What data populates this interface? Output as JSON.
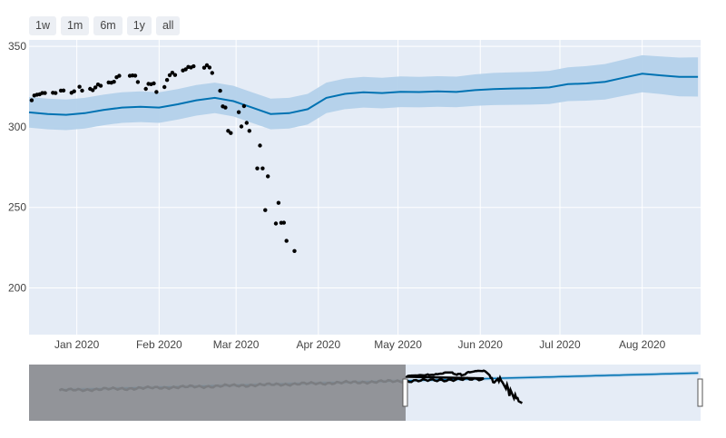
{
  "range_selector": {
    "buttons": [
      {
        "label": "1w"
      },
      {
        "label": "1m"
      },
      {
        "label": "6m"
      },
      {
        "label": "1y"
      },
      {
        "label": "all"
      }
    ]
  },
  "colors": {
    "plot_bg": "#e5ecf6",
    "forecast_line": "#0072b2",
    "forecast_band": "#b3d1ea",
    "actual_points": "#000000",
    "slider_mask": "#888b8f"
  },
  "chart_data": {
    "type": "scatter",
    "title": "",
    "xlabel": "",
    "ylabel": "",
    "x_range": [
      "2019-12-14",
      "2020-08-23"
    ],
    "ylim": [
      171,
      354
    ],
    "grid": true,
    "x_tick_labels": [
      {
        "date": "2020-01-01",
        "label": "Jan 2020"
      },
      {
        "date": "2020-02-01",
        "label": "Feb 2020"
      },
      {
        "date": "2020-03-01",
        "label": "Mar 2020"
      },
      {
        "date": "2020-04-01",
        "label": "Apr 2020"
      },
      {
        "date": "2020-05-01",
        "label": "May 2020"
      },
      {
        "date": "2020-06-01",
        "label": "Jun 2020"
      },
      {
        "date": "2020-07-01",
        "label": "Jul 2020"
      },
      {
        "date": "2020-08-01",
        "label": "Aug 2020"
      }
    ],
    "y_ticks": [
      200,
      250,
      300,
      350
    ],
    "series": [
      {
        "kind": "actual",
        "mode": "markers",
        "x": [
          "2019-12-15",
          "2019-12-16",
          "2019-12-17",
          "2019-12-18",
          "2019-12-19",
          "2019-12-20",
          "2019-12-23",
          "2019-12-24",
          "2019-12-26",
          "2019-12-27",
          "2019-12-30",
          "2019-12-31",
          "2020-01-02",
          "2020-01-03",
          "2020-01-06",
          "2020-01-07",
          "2020-01-08",
          "2020-01-09",
          "2020-01-10",
          "2020-01-13",
          "2020-01-14",
          "2020-01-15",
          "2020-01-16",
          "2020-01-17",
          "2020-01-21",
          "2020-01-22",
          "2020-01-23",
          "2020-01-24",
          "2020-01-27",
          "2020-01-28",
          "2020-01-29",
          "2020-01-30",
          "2020-01-31",
          "2020-02-03",
          "2020-02-04",
          "2020-02-05",
          "2020-02-06",
          "2020-02-07",
          "2020-02-10",
          "2020-02-11",
          "2020-02-12",
          "2020-02-13",
          "2020-02-14",
          "2020-02-18",
          "2020-02-19",
          "2020-02-20",
          "2020-02-21",
          "2020-02-24",
          "2020-02-25",
          "2020-02-26",
          "2020-02-27",
          "2020-02-28",
          "2020-03-02",
          "2020-03-03",
          "2020-03-04",
          "2020-03-05",
          "2020-03-06",
          "2020-03-09",
          "2020-03-10",
          "2020-03-11",
          "2020-03-12",
          "2020-03-13",
          "2020-03-16",
          "2020-03-17",
          "2020-03-18",
          "2020-03-19",
          "2020-03-20",
          "2020-03-23"
        ],
        "values": [
          316.5,
          319.5,
          320.0,
          320.2,
          321.0,
          321.0,
          321.2,
          321.0,
          322.5,
          322.6,
          321.2,
          322.1,
          324.9,
          322.5,
          323.6,
          322.8,
          324.5,
          326.3,
          325.5,
          327.6,
          327.4,
          328.0,
          330.8,
          331.7,
          331.7,
          331.9,
          331.8,
          327.9,
          323.6,
          326.7,
          326.5,
          327.0,
          321.7,
          324.7,
          329.1,
          332.1,
          333.6,
          332.2,
          335.0,
          335.7,
          337.2,
          336.9,
          337.6,
          336.7,
          338.3,
          336.9,
          333.5,
          322.4,
          312.7,
          312.0,
          297.5,
          296.2,
          309.1,
          300.2,
          312.9,
          302.5,
          297.5,
          274.2,
          288.4,
          274.2,
          248.3,
          269.3,
          240.0,
          252.8,
          240.4,
          240.5,
          229.2,
          222.9
        ]
      },
      {
        "kind": "forecast",
        "mode": "lines",
        "x": [
          "2019-12-14",
          "2019-12-21",
          "2019-12-28",
          "2020-01-04",
          "2020-01-11",
          "2020-01-18",
          "2020-01-25",
          "2020-02-01",
          "2020-02-08",
          "2020-02-15",
          "2020-02-22",
          "2020-02-29",
          "2020-03-07",
          "2020-03-14",
          "2020-03-21",
          "2020-03-28",
          "2020-04-04",
          "2020-04-11",
          "2020-04-18",
          "2020-04-25",
          "2020-05-02",
          "2020-05-09",
          "2020-05-16",
          "2020-05-23",
          "2020-05-30",
          "2020-06-06",
          "2020-06-13",
          "2020-06-20",
          "2020-06-27",
          "2020-07-04",
          "2020-07-11",
          "2020-07-18",
          "2020-07-25",
          "2020-08-01",
          "2020-08-08",
          "2020-08-15",
          "2020-08-22"
        ],
        "values": [
          309.0,
          308.0,
          307.5,
          308.5,
          310.5,
          312.0,
          312.5,
          312.0,
          314.0,
          316.5,
          318.0,
          316.0,
          312.0,
          308.0,
          308.5,
          311.0,
          318.0,
          320.5,
          321.5,
          321.0,
          321.8,
          321.6,
          322.0,
          321.7,
          322.8,
          323.5,
          323.8,
          324.0,
          324.5,
          326.5,
          327.0,
          328.0,
          330.5,
          333.0,
          332.0,
          331.0,
          331.0
        ],
        "lower": [
          299.5,
          298.5,
          298.0,
          299.0,
          301.0,
          302.5,
          303.0,
          302.5,
          304.5,
          307.0,
          308.5,
          306.5,
          302.5,
          298.5,
          299.0,
          301.5,
          308.5,
          311.0,
          312.0,
          311.5,
          312.3,
          312.1,
          312.5,
          312.2,
          313.0,
          313.5,
          313.7,
          313.8,
          314.2,
          316.0,
          316.3,
          317.0,
          319.3,
          321.5,
          320.3,
          319.0,
          318.8
        ],
        "upper": [
          318.5,
          317.5,
          317.0,
          318.0,
          320.0,
          321.5,
          322.0,
          321.5,
          323.5,
          326.0,
          327.5,
          325.5,
          321.5,
          317.5,
          318.0,
          320.5,
          327.5,
          330.0,
          331.0,
          330.5,
          331.3,
          331.1,
          331.5,
          331.2,
          332.6,
          333.5,
          333.9,
          334.2,
          334.8,
          337.0,
          337.7,
          339.0,
          341.7,
          344.5,
          343.7,
          343.0,
          343.2
        ]
      }
    ]
  }
}
